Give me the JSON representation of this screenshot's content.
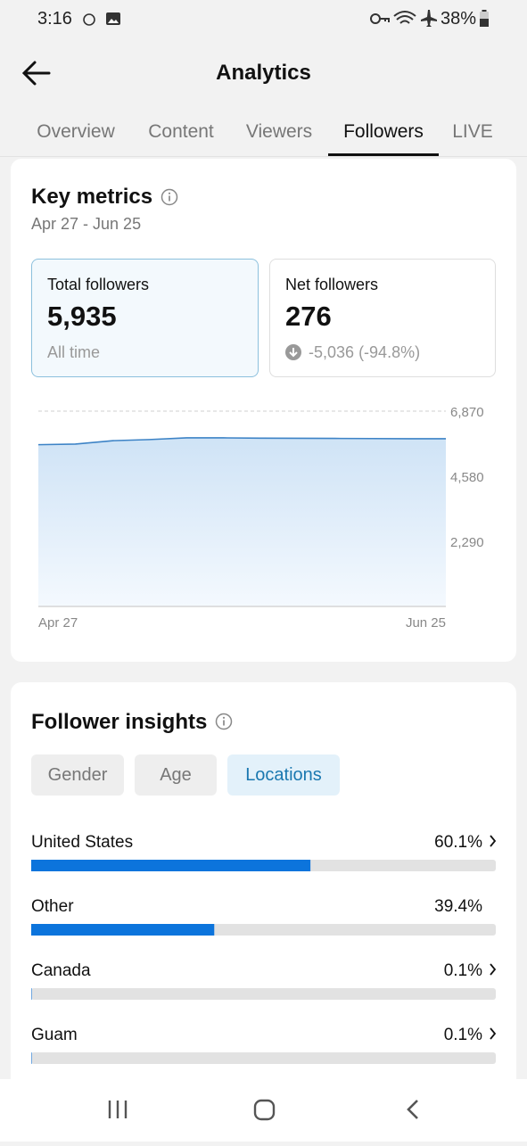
{
  "status_bar": {
    "time": "3:16",
    "battery": "38%"
  },
  "header": {
    "title": "Analytics"
  },
  "tabs": {
    "items": [
      "Overview",
      "Content",
      "Viewers",
      "Followers",
      "LIVE"
    ],
    "active": 3
  },
  "key_metrics": {
    "title": "Key metrics",
    "date_range": "Apr 27 - Jun 25",
    "cards": [
      {
        "label": "Total followers",
        "value": "5,935",
        "note": "All time"
      },
      {
        "label": "Net followers",
        "value": "276",
        "change": "-5,036",
        "change_pct": "(-94.8%)"
      }
    ]
  },
  "follower_insights": {
    "title": "Follower insights",
    "filters": [
      "Gender",
      "Age",
      "Locations"
    ],
    "active_filter": 2
  },
  "chart_data": [
    {
      "type": "area",
      "categories": [
        "Apr 27",
        null,
        null,
        null,
        null,
        null,
        null,
        null,
        null,
        null,
        null,
        "Jun 25"
      ],
      "values": [
        5690,
        5710,
        5830,
        5870,
        5930,
        5930,
        5920,
        5915,
        5910,
        5905,
        5900,
        5900
      ],
      "color": "#3d83c6",
      "ylim": [
        0,
        6870
      ],
      "yticks": [
        {
          "value": 2290,
          "label": "2,290"
        },
        {
          "value": 4580,
          "label": "4,580"
        },
        {
          "value": 6870,
          "label": "6,870"
        }
      ],
      "grid": true
    },
    {
      "type": "hbar",
      "categories": [
        "United States",
        "Other",
        "Canada",
        "Guam"
      ],
      "values": [
        60.1,
        39.4,
        0.1,
        0.1
      ],
      "value_labels": [
        "60.1%",
        "39.4%",
        "0.1%",
        "0.1%"
      ],
      "color": "#0c74dc",
      "xlim": [
        0,
        100
      ]
    }
  ]
}
